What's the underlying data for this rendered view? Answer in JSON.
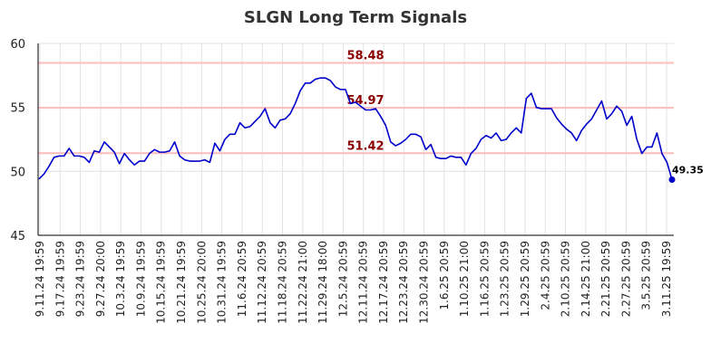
{
  "chart_data": {
    "type": "line",
    "title": "SLGN Long Term Signals",
    "xlabel": "",
    "ylabel": "",
    "ylim": [
      45,
      60
    ],
    "y_ticks": [
      "45",
      "50",
      "55",
      "60"
    ],
    "x_tick_labels": [
      "9.11.24 19:59",
      "9.17.24 19:59",
      "9.23.24 19:59",
      "9.27.24 20:00",
      "10.3.24 19:59",
      "10.9.24 19:59",
      "10.15.24 19:59",
      "10.21.24 19:59",
      "10.25.24 20:00",
      "10.31.24 19:59",
      "11.6.24 20:59",
      "11.12.24 20:59",
      "11.18.24 20:59",
      "11.22.24 21:00",
      "11.29.24 18:00",
      "12.5.24 20:59",
      "12.11.24 20:59",
      "12.17.24 20:59",
      "12.23.24 20:59",
      "12.30.24 20:59",
      "1.6.25 20:59",
      "1.10.25 21:00",
      "1.16.25 20:59",
      "1.23.25 20:59",
      "1.29.25 20:59",
      "2.4.25 20:59",
      "2.10.25 20:59",
      "2.14.25 21:00",
      "2.21.25 20:59",
      "2.27.25 20:59",
      "3.5.25 20:59",
      "3.11.25 19:59"
    ],
    "grid": true,
    "signal_lines": [
      {
        "value": 58.48,
        "label": "58.48"
      },
      {
        "value": 54.97,
        "label": "54.97"
      },
      {
        "value": 51.42,
        "label": "51.42"
      }
    ],
    "series": [
      {
        "color": "#0000cc",
        "values": [
          49.4,
          49.8,
          50.4,
          51.1,
          51.2,
          51.2,
          51.8,
          51.2,
          51.2,
          51.1,
          50.7,
          51.6,
          51.5,
          52.3,
          51.9,
          51.5,
          50.6,
          51.4,
          50.9,
          50.5,
          50.8,
          50.8,
          51.4,
          51.7,
          51.5,
          51.5,
          51.6,
          52.3,
          51.2,
          50.9,
          50.8,
          50.8,
          50.8,
          50.9,
          50.7,
          52.2,
          51.6,
          52.5,
          52.9,
          52.9,
          53.8,
          53.4,
          53.5,
          53.9,
          54.3,
          54.9,
          53.8,
          53.4,
          54.0,
          54.1,
          54.5,
          55.3,
          56.3,
          56.9,
          56.9,
          57.2,
          57.3,
          57.3,
          57.1,
          56.6,
          56.4,
          56.4,
          55.3,
          55.4,
          55.1,
          54.8,
          54.8,
          54.9,
          54.3,
          53.6,
          52.3,
          52.0,
          52.2,
          52.5,
          52.9,
          52.9,
          52.7,
          51.7,
          52.1,
          51.1,
          51.0,
          51.0,
          51.2,
          51.1,
          51.1,
          50.5,
          51.4,
          51.8,
          52.5,
          52.8,
          52.6,
          53.0,
          52.4,
          52.5,
          53.0,
          53.4,
          53.0,
          55.7,
          56.1,
          55.0,
          54.9,
          54.9,
          54.9,
          54.2,
          53.7,
          53.3,
          53.0,
          52.4,
          53.2,
          53.7,
          54.1,
          54.8,
          55.5,
          54.1,
          54.5,
          55.1,
          54.7,
          53.6,
          54.3,
          52.5,
          51.4,
          51.9,
          51.9,
          53.0,
          51.4,
          50.7,
          49.35
        ]
      }
    ],
    "last_value": 49.35,
    "last_value_label": "49.35"
  }
}
